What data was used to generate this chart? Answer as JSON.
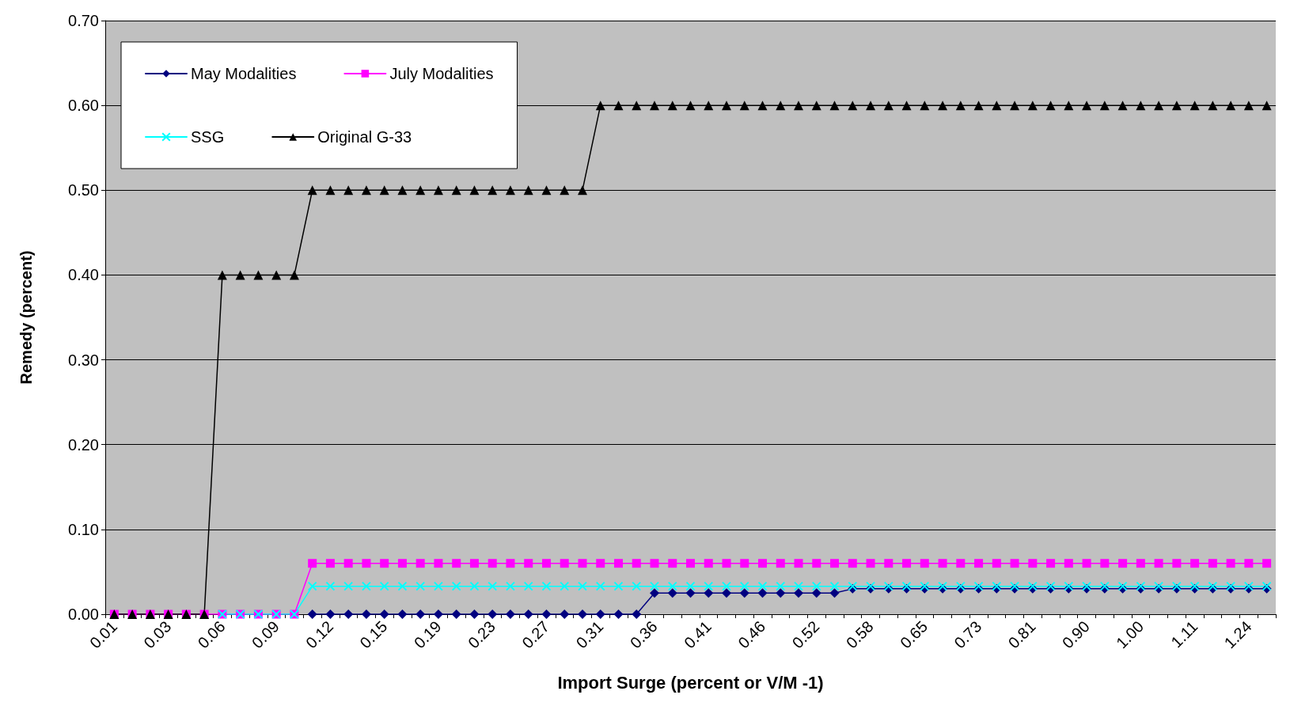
{
  "chart_data": {
    "type": "line",
    "xlabel": "Import Surge (percent or V/M -1)",
    "ylabel": "Remedy (percent)",
    "categories": [
      "0.01",
      null,
      null,
      "0.03",
      null,
      null,
      "0.06",
      null,
      null,
      "0.09",
      null,
      null,
      "0.12",
      null,
      null,
      "0.15",
      null,
      null,
      "0.19",
      null,
      null,
      "0.23",
      null,
      null,
      "0.27",
      null,
      null,
      "0.31",
      null,
      null,
      "0.36",
      null,
      null,
      "0.41",
      null,
      null,
      "0.46",
      null,
      null,
      "0.52",
      null,
      null,
      "0.58",
      null,
      null,
      "0.65",
      null,
      null,
      "0.73",
      null,
      null,
      "0.81",
      null,
      null,
      "0.90",
      null,
      null,
      "1.00",
      null,
      null,
      "1.11",
      null,
      null,
      "1.24",
      null
    ],
    "ylim": [
      0,
      0.7
    ],
    "yticks": [
      {
        "value": 0,
        "label": "0.00"
      },
      {
        "value": 0.1,
        "label": "0.10"
      },
      {
        "value": 0.2,
        "label": "0.20"
      },
      {
        "value": 0.3,
        "label": "0.30"
      },
      {
        "value": 0.4,
        "label": "0.40"
      },
      {
        "value": 0.5,
        "label": "0.50"
      },
      {
        "value": 0.6,
        "label": "0.60"
      },
      {
        "value": 0.7,
        "label": "0.70"
      }
    ],
    "grid": "y",
    "legend": "top left",
    "series": [
      {
        "name": "May Modalities",
        "color": "#000080",
        "marker": "diamond",
        "values": [
          null,
          null,
          null,
          null,
          null,
          null,
          null,
          null,
          null,
          null,
          null,
          0,
          0,
          0,
          0,
          0,
          0,
          0,
          0,
          0,
          0,
          0,
          0,
          0,
          0,
          0,
          0,
          0,
          0,
          0,
          0.025,
          0.025,
          0.025,
          0.025,
          0.025,
          0.025,
          0.025,
          0.025,
          0.025,
          0.025,
          0.025,
          0.03,
          0.03,
          0.03,
          0.03,
          0.03,
          0.03,
          0.03,
          0.03,
          0.03,
          0.03,
          0.03,
          0.03,
          0.03,
          0.03,
          0.03,
          0.03,
          0.03,
          0.03,
          0.03,
          0.03,
          0.03,
          0.03,
          0.03,
          0.03
        ]
      },
      {
        "name": "July Modalities",
        "color": "#ff00ff",
        "marker": "square",
        "values": [
          0,
          0,
          0,
          0,
          0,
          0,
          0,
          0,
          0,
          0,
          0,
          0.06,
          0.06,
          0.06,
          0.06,
          0.06,
          0.06,
          0.06,
          0.06,
          0.06,
          0.06,
          0.06,
          0.06,
          0.06,
          0.06,
          0.06,
          0.06,
          0.06,
          0.06,
          0.06,
          0.06,
          0.06,
          0.06,
          0.06,
          0.06,
          0.06,
          0.06,
          0.06,
          0.06,
          0.06,
          0.06,
          0.06,
          0.06,
          0.06,
          0.06,
          0.06,
          0.06,
          0.06,
          0.06,
          0.06,
          0.06,
          0.06,
          0.06,
          0.06,
          0.06,
          0.06,
          0.06,
          0.06,
          0.06,
          0.06,
          0.06,
          0.06,
          0.06,
          0.06,
          0.06
        ]
      },
      {
        "name": "SSG",
        "color": "#00ffff",
        "marker": "cross",
        "values": [
          null,
          null,
          null,
          null,
          null,
          null,
          0,
          0,
          0,
          0,
          0,
          0.033,
          0.033,
          0.033,
          0.033,
          0.033,
          0.033,
          0.033,
          0.033,
          0.033,
          0.033,
          0.033,
          0.033,
          0.033,
          0.033,
          0.033,
          0.033,
          0.033,
          0.033,
          0.033,
          0.033,
          0.033,
          0.033,
          0.033,
          0.033,
          0.033,
          0.033,
          0.033,
          0.033,
          0.033,
          0.033,
          0.033,
          0.033,
          0.033,
          0.033,
          0.033,
          0.033,
          0.033,
          0.033,
          0.033,
          0.033,
          0.033,
          0.033,
          0.033,
          0.033,
          0.033,
          0.033,
          0.033,
          0.033,
          0.033,
          0.033,
          0.033,
          0.033,
          0.033,
          0.033
        ]
      },
      {
        "name": "Original G-33",
        "color": "#000000",
        "marker": "triangle",
        "values": [
          0,
          0,
          0,
          0,
          0,
          0,
          0.4,
          0.4,
          0.4,
          0.4,
          0.4,
          0.5,
          0.5,
          0.5,
          0.5,
          0.5,
          0.5,
          0.5,
          0.5,
          0.5,
          0.5,
          0.5,
          0.5,
          0.5,
          0.5,
          0.5,
          0.5,
          0.6,
          0.6,
          0.6,
          0.6,
          0.6,
          0.6,
          0.6,
          0.6,
          0.6,
          0.6,
          0.6,
          0.6,
          0.6,
          0.6,
          0.6,
          0.6,
          0.6,
          0.6,
          0.6,
          0.6,
          0.6,
          0.6,
          0.6,
          0.6,
          0.6,
          0.6,
          0.6,
          0.6,
          0.6,
          0.6,
          0.6,
          0.6,
          0.6,
          0.6,
          0.6,
          0.6,
          0.6,
          0.6
        ]
      }
    ]
  }
}
